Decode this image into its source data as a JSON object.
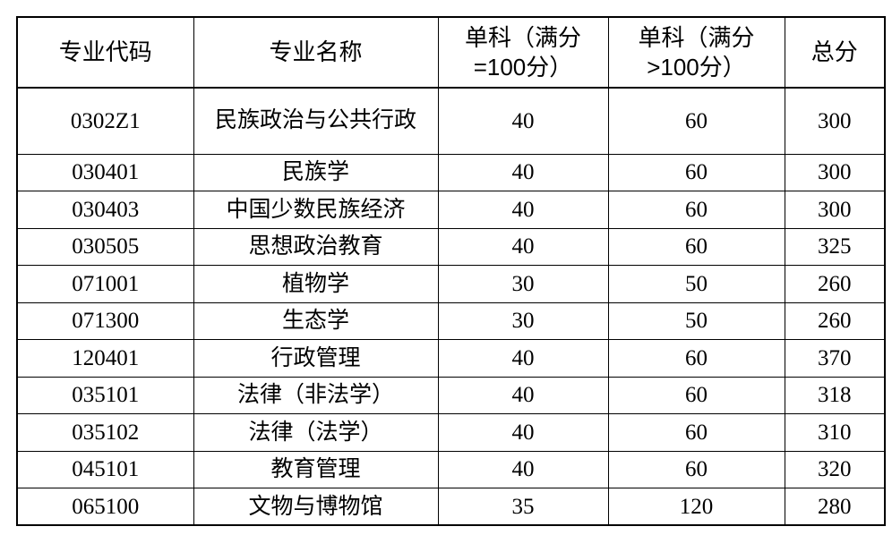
{
  "headers": [
    "专业代码",
    "专业名称",
    "单科（满分=100分）",
    "单科（满分>100分）",
    "总分"
  ],
  "header_lines": [
    [
      "专业代码"
    ],
    [
      "专业名称"
    ],
    [
      "单科（满分",
      "=100分）"
    ],
    [
      "单科（满分",
      ">100分）"
    ],
    [
      "总分"
    ]
  ],
  "rows": [
    {
      "code": "0302Z1",
      "name": "民族政治与公共行政",
      "s100": "40",
      "sgt100": "60",
      "total": "300"
    },
    {
      "code": "030401",
      "name": "民族学",
      "s100": "40",
      "sgt100": "60",
      "total": "300"
    },
    {
      "code": "030403",
      "name": "中国少数民族经济",
      "s100": "40",
      "sgt100": "60",
      "total": "300"
    },
    {
      "code": "030505",
      "name": "思想政治教育",
      "s100": "40",
      "sgt100": "60",
      "total": "325"
    },
    {
      "code": "071001",
      "name": "植物学",
      "s100": "30",
      "sgt100": "50",
      "total": "260"
    },
    {
      "code": "071300",
      "name": "生态学",
      "s100": "30",
      "sgt100": "50",
      "total": "260"
    },
    {
      "code": "120401",
      "name": "行政管理",
      "s100": "40",
      "sgt100": "60",
      "total": "370"
    },
    {
      "code": "035101",
      "name": "法律（非法学）",
      "s100": "40",
      "sgt100": "60",
      "total": "318"
    },
    {
      "code": "035102",
      "name": "法律（法学）",
      "s100": "40",
      "sgt100": "60",
      "total": "310"
    },
    {
      "code": "045101",
      "name": "教育管理",
      "s100": "40",
      "sgt100": "60",
      "total": "320"
    },
    {
      "code": "065100",
      "name": "文物与博物馆",
      "s100": "35",
      "sgt100": "120",
      "total": "280"
    }
  ]
}
